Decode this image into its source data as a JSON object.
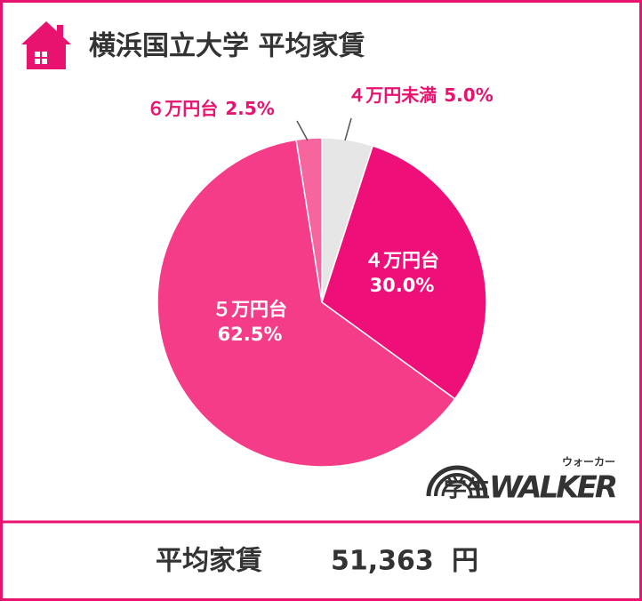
{
  "chart_data": {
    "type": "pie",
    "title": "横浜国立大学 平均家賃",
    "categories": [
      "４万円未満",
      "４万円台",
      "５万円台",
      "６万円台"
    ],
    "values": [
      5.0,
      30.0,
      62.5,
      2.5
    ],
    "value_labels": [
      "5.0%",
      "30.0%",
      "62.5%",
      "2.5%"
    ],
    "colors": [
      "#e6e6e6",
      "#ee0f78",
      "#f43c88",
      "#f7659f"
    ]
  },
  "footer": {
    "label": "平均家賃",
    "value": "51,363",
    "unit": "円"
  },
  "logo": {
    "text": "学生",
    "brand": "WALKER",
    "ruby": "ウォーカー"
  }
}
